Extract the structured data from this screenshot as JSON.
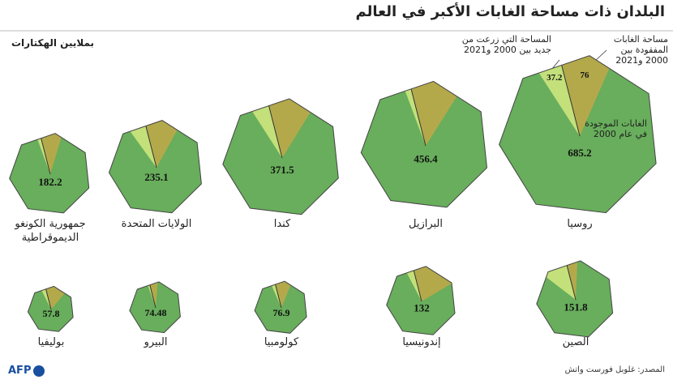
{
  "chart_data": {
    "type": "heptagon-area",
    "title": "البلدان ذات مساحة الغابات الأكبر في العالم",
    "unit": "بملايين الهكتارات",
    "source": "المصدر: غلوبل فورست واتش",
    "logo": "AFP",
    "categories": [
      "روسيا",
      "البرازيل",
      "كندا",
      "الولايات المتحدة",
      "جمهورية الكونغو الديموقراطية",
      "الصين",
      "إندونيسيا",
      "كولومبيا",
      "البيرو",
      "بوليفيا"
    ],
    "series": [
      {
        "name": "الغابات الموجودة في عام 2000",
        "color": "#68ae5c",
        "values": [
          685.2,
          456.4,
          371.5,
          235.1,
          182.2,
          151.8,
          132,
          76.9,
          74.48,
          57.8
        ]
      },
      {
        "name": "مساحة الغابات المفقودة بين 2000 و2021",
        "color": "#b3a94b",
        "values": [
          76,
          60,
          50,
          30,
          16,
          8,
          28,
          8,
          4,
          9
        ],
        "value_labels": [
          "76",
          null,
          null,
          null,
          null,
          null,
          null,
          null,
          null,
          null
        ]
      },
      {
        "name": "المساحة التي زرعت من جديد بين 2000 و2021",
        "color": "#c3e07a",
        "values": [
          37.2,
          8,
          20,
          15,
          3,
          18,
          5,
          2,
          1,
          2
        ],
        "value_labels": [
          "37.2",
          null,
          null,
          null,
          null,
          null,
          null,
          null,
          null,
          null
        ]
      }
    ]
  }
}
